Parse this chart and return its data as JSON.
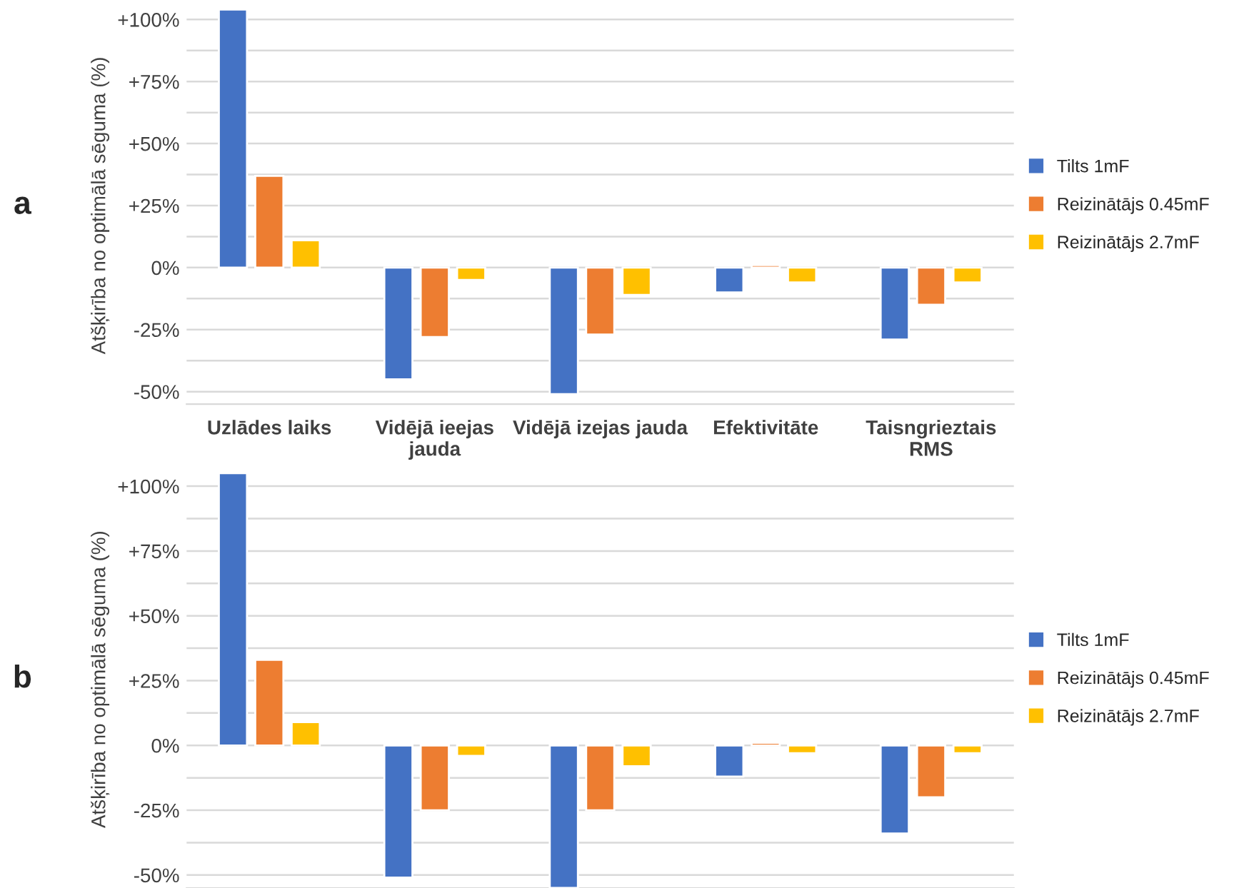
{
  "chart_data": [
    {
      "type": "bar",
      "categories": [
        "Uzlādes laiks",
        "Vidējā ieejas\njauda",
        "Vidējā izejas jauda",
        "Efektivitāte",
        "Taisngrieztais\nRMS"
      ],
      "series": [
        {
          "name": "Tilts 1mF",
          "color": "#4472c4",
          "values": [
            104,
            -45,
            -51,
            -10,
            -29
          ]
        },
        {
          "name": "Reizinātājs 0.45mF",
          "color": "#ed7d31",
          "values": [
            37,
            -28,
            -27,
            1,
            -15
          ]
        },
        {
          "name": "Reizinātājs 2.7mF",
          "color": "#ffc000",
          "values": [
            11,
            -5,
            -11,
            -6,
            -6
          ]
        }
      ],
      "ylabel": "Atšķirība no optimālā sēguma (%)",
      "ylim": [
        -55,
        105
      ],
      "yticks": [
        {
          "value": -50,
          "label": "-50%"
        },
        {
          "value": -37.5,
          "label": null
        },
        {
          "value": -25,
          "label": "-25%"
        },
        {
          "value": -12.5,
          "label": null
        },
        {
          "value": 0,
          "label": "0%"
        },
        {
          "value": 12.5,
          "label": null
        },
        {
          "value": 25,
          "label": "+25%"
        },
        {
          "value": 37.5,
          "label": null
        },
        {
          "value": 50,
          "label": "+50%"
        },
        {
          "value": 62.5,
          "label": null
        },
        {
          "value": 75,
          "label": "+75%"
        },
        {
          "value": 87.5,
          "label": null
        },
        {
          "value": 100,
          "label": "+100%"
        }
      ],
      "grid": "y",
      "legend": "right",
      "annotations": [
        "a"
      ]
    },
    {
      "type": "bar",
      "categories": [
        null,
        null,
        null,
        null,
        null
      ],
      "series": [
        {
          "name": "Tilts 1mF",
          "color": "#4472c4",
          "values": [
            105,
            -51,
            -55,
            -12,
            -34
          ]
        },
        {
          "name": "Reizinātājs 0.45mF",
          "color": "#ed7d31",
          "values": [
            33,
            -25,
            -25,
            1,
            -20
          ]
        },
        {
          "name": "Reizinātājs 2.7mF",
          "color": "#ffc000",
          "values": [
            9,
            -4,
            -8,
            -3,
            -3
          ]
        }
      ],
      "ylabel": "Atšķirība no optimālā sēguma (%)",
      "ylim": [
        -55,
        106
      ],
      "yticks": [
        {
          "value": -50,
          "label": "-50%"
        },
        {
          "value": -37.5,
          "label": null
        },
        {
          "value": -25,
          "label": "-25%"
        },
        {
          "value": -12.5,
          "label": null
        },
        {
          "value": 0,
          "label": "0%"
        },
        {
          "value": 12.5,
          "label": null
        },
        {
          "value": 25,
          "label": "+25%"
        },
        {
          "value": 37.5,
          "label": null
        },
        {
          "value": 50,
          "label": "+50%"
        },
        {
          "value": 62.5,
          "label": null
        },
        {
          "value": 75,
          "label": "+75%"
        },
        {
          "value": 87.5,
          "label": null
        },
        {
          "value": 100,
          "label": "+100%"
        }
      ],
      "grid": "y",
      "legend": "right",
      "tick_labels": "y",
      "annotations": [
        "b"
      ]
    }
  ]
}
